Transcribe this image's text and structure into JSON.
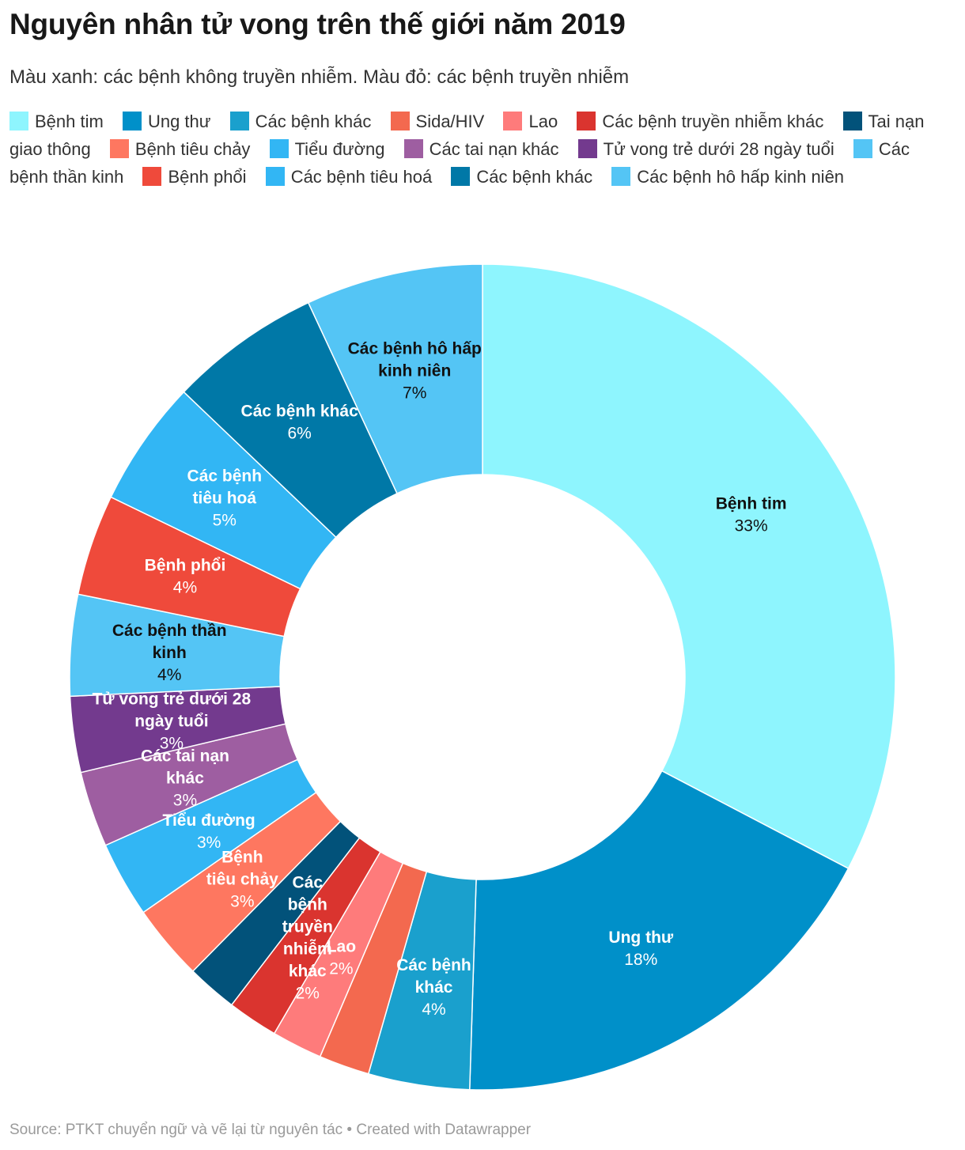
{
  "title": "Nguyên nhân tử vong trên thế giới năm 2019",
  "subtitle": "Màu xanh: các bệnh không truyền nhiễm. Màu đỏ: các bệnh truyền nhiễm",
  "footer": "Source: PTKT chuyển ngữ và vẽ lại từ nguyên tác • Created with Datawrapper",
  "legend": [
    {
      "label": "Bệnh tim",
      "color": "#8ef5fe"
    },
    {
      "label": "Ung thư",
      "color": "#0090c9"
    },
    {
      "label": "Các bệnh khác",
      "color": "#1aa0cd"
    },
    {
      "label": "Sida/HIV",
      "color": "#f3694f"
    },
    {
      "label": "Lao",
      "color": "#fe7b7b"
    },
    {
      "label": "Các bệnh truyền nhiễm khác",
      "color": "#da342f"
    },
    {
      "label": "Tai nạn giao thông",
      "color": "#02527a"
    },
    {
      "label": "Bệnh tiêu chảy",
      "color": "#fe7760"
    },
    {
      "label": "Tiểu đường",
      "color": "#32b6f4"
    },
    {
      "label": "Các tai nạn khác",
      "color": "#9e5ea1"
    },
    {
      "label": "Tử vong trẻ dưới 28 ngày tuổi",
      "color": "#733a8e"
    },
    {
      "label": "Các bệnh thần kinh",
      "color": "#54c5f5"
    },
    {
      "label": "Bệnh phổi",
      "color": "#ef4a3b"
    },
    {
      "label": "Các bệnh tiêu hoá",
      "color": "#32b6f4"
    },
    {
      "label": "Các bệnh khác",
      "color": "#0078a7"
    },
    {
      "label": "Các bệnh hô hấp kinh niên",
      "color": "#54c5f5"
    }
  ],
  "chart_data": {
    "type": "pie",
    "donut": true,
    "unit": "%",
    "slices": [
      {
        "name": "Bệnh tim",
        "value": 33,
        "display": "33%",
        "color": "#8ef5fe",
        "label_color": "#111111",
        "label_lines": [
          "Bệnh tim"
        ]
      },
      {
        "name": "Ung thư",
        "value": 18,
        "display": "18%",
        "color": "#0090c9",
        "label_color": "#ffffff",
        "label_lines": [
          "Ung thư"
        ]
      },
      {
        "name": "Các bệnh khác",
        "value": 4,
        "display": "4%",
        "color": "#1aa0cd",
        "label_color": "#ffffff",
        "label_lines": [
          "Các bệnh",
          "khác"
        ]
      },
      {
        "name": "Sida/HIV",
        "value": 2,
        "display": "",
        "color": "#f3694f",
        "label_color": "#ffffff",
        "label_lines": []
      },
      {
        "name": "Lao",
        "value": 2,
        "display": "2%",
        "color": "#fe7b7b",
        "label_color": "#ffffff",
        "label_lines": [
          "Lao"
        ]
      },
      {
        "name": "Các bệnh truyền nhiễm khác",
        "value": 2,
        "display": "2%",
        "color": "#da342f",
        "label_color": "#ffffff",
        "label_lines": [
          "Các",
          "bệnh",
          "truyền",
          "nhiễm",
          "khác"
        ]
      },
      {
        "name": "Tai nạn giao thông",
        "value": 2,
        "display": "",
        "color": "#02527a",
        "label_color": "#ffffff",
        "label_lines": []
      },
      {
        "name": "Bệnh tiêu chảy",
        "value": 3,
        "display": "3%",
        "color": "#fe7760",
        "label_color": "#ffffff",
        "label_lines": [
          "Bệnh",
          "tiêu chảy"
        ]
      },
      {
        "name": "Tiểu đường",
        "value": 3,
        "display": "3%",
        "color": "#32b6f4",
        "label_color": "#ffffff",
        "label_lines": [
          "Tiểu đường"
        ]
      },
      {
        "name": "Các tai nạn khác",
        "value": 3,
        "display": "3%",
        "color": "#9e5ea1",
        "label_color": "#ffffff",
        "label_lines": [
          "Các tai nạn",
          "khác"
        ]
      },
      {
        "name": "Tử vong trẻ dưới 28 ngày tuổi",
        "value": 3,
        "display": "3%",
        "color": "#733a8e",
        "label_color": "#ffffff",
        "label_lines": [
          "Tử vong trẻ dưới 28",
          "ngày tuổi"
        ]
      },
      {
        "name": "Các bệnh thần kinh",
        "value": 4,
        "display": "4%",
        "color": "#54c5f5",
        "label_color": "#111111",
        "label_lines": [
          "Các bệnh thần",
          "kinh"
        ]
      },
      {
        "name": "Bệnh phổi",
        "value": 4,
        "display": "4%",
        "color": "#ef4a3b",
        "label_color": "#ffffff",
        "label_lines": [
          "Bệnh phổi"
        ]
      },
      {
        "name": "Các bệnh tiêu hoá",
        "value": 5,
        "display": "5%",
        "color": "#32b6f4",
        "label_color": "#ffffff",
        "label_lines": [
          "Các bệnh",
          "tiêu hoá"
        ]
      },
      {
        "name": "Các bệnh khác",
        "value": 6,
        "display": "6%",
        "color": "#0078a7",
        "label_color": "#ffffff",
        "label_lines": [
          "Các bệnh khác"
        ]
      },
      {
        "name": "Các bệnh hô hấp kinh niên",
        "value": 7,
        "display": "7%",
        "color": "#54c5f5",
        "label_color": "#111111",
        "label_lines": [
          "Các bệnh hô hấp",
          "kinh niên"
        ]
      }
    ]
  }
}
